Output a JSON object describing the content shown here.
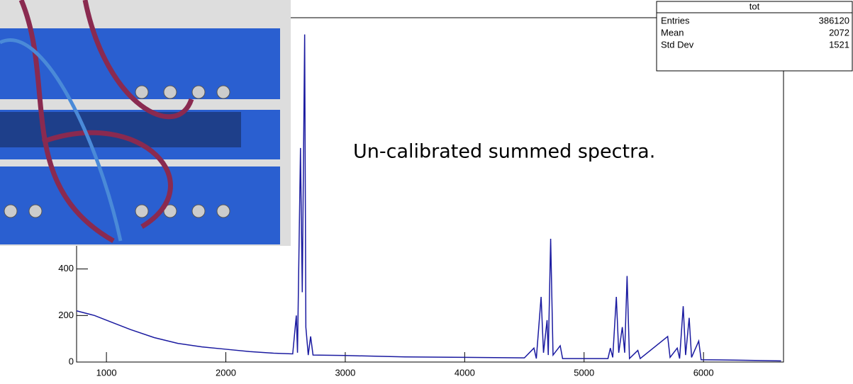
{
  "chart_data": {
    "type": "line",
    "color": "#1a1aa0",
    "annotation": "Un-calibrated summed spectra.",
    "stats": {
      "title": "tot",
      "rows": [
        {
          "label": "Entries",
          "value": 386120
        },
        {
          "label": "Mean",
          "value": 2072
        },
        {
          "label": "Std Dev",
          "value": 1521
        }
      ]
    },
    "x": [
      750,
      900,
      1000,
      1200,
      1400,
      1600,
      1800,
      2000,
      2200,
      2400,
      2560,
      2590,
      2600,
      2625,
      2640,
      2660,
      2670,
      2690,
      2710,
      2730,
      3000,
      3500,
      4000,
      4500,
      4580,
      4600,
      4640,
      4660,
      4690,
      4700,
      4720,
      4740,
      4800,
      4820,
      5200,
      5220,
      5240,
      5270,
      5290,
      5320,
      5340,
      5360,
      5380,
      5450,
      5470,
      5700,
      5720,
      5780,
      5800,
      5830,
      5850,
      5880,
      5900,
      5960,
      5980,
      6300,
      6650
    ],
    "values": [
      220,
      200,
      180,
      140,
      105,
      80,
      65,
      55,
      45,
      38,
      35,
      200,
      40,
      920,
      300,
      1408,
      150,
      30,
      110,
      30,
      28,
      22,
      20,
      18,
      60,
      15,
      280,
      40,
      180,
      30,
      530,
      30,
      70,
      15,
      15,
      60,
      20,
      280,
      40,
      150,
      40,
      370,
      15,
      50,
      15,
      110,
      20,
      60,
      15,
      240,
      30,
      190,
      20,
      90,
      10,
      8,
      5
    ],
    "xlim": [
      750,
      6670
    ],
    "ylim": [
      0,
      1480
    ],
    "xticks": [
      1000,
      2000,
      3000,
      4000,
      5000,
      6000
    ],
    "yticks": [
      0,
      200,
      400
    ]
  }
}
